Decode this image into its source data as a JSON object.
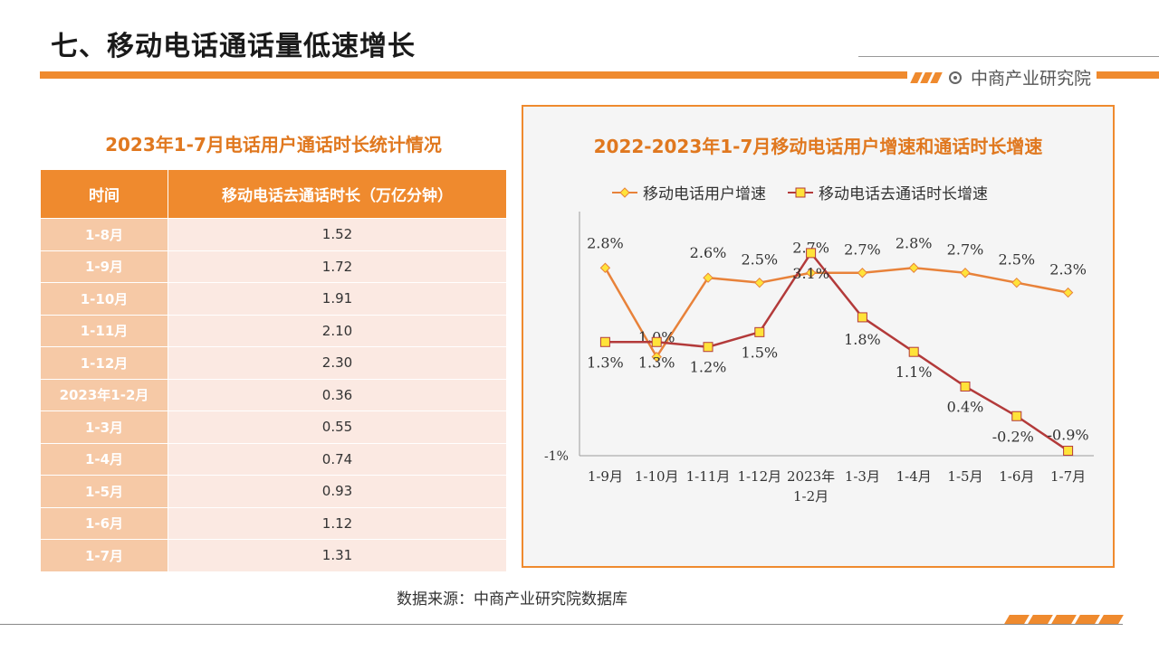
{
  "page": {
    "title": "七、移动电话通话量低速增长",
    "brand": "中商产业研究院",
    "source": "数据来源：中商产业研究院数据库"
  },
  "table": {
    "title": "2023年1-7月电话用户通话时长统计情况",
    "headers": [
      "时间",
      "移动电话去通话时长（万亿分钟）"
    ],
    "rows": [
      [
        "1-8月",
        "1.52"
      ],
      [
        "1-9月",
        "1.72"
      ],
      [
        "1-10月",
        "1.91"
      ],
      [
        "1-11月",
        "2.10"
      ],
      [
        "1-12月",
        "2.30"
      ],
      [
        "2023年1-2月",
        "0.36"
      ],
      [
        "1-3月",
        "0.55"
      ],
      [
        "1-4月",
        "0.74"
      ],
      [
        "1-5月",
        "0.93"
      ],
      [
        "1-6月",
        "1.12"
      ],
      [
        "1-7月",
        "1.31"
      ]
    ]
  },
  "chart_data": {
    "type": "line",
    "title": "2022-2023年1-7月移动电话用户增速和通话时长增速",
    "categories": [
      "1-9月",
      "1-10月",
      "1-11月",
      "1-12月",
      "2023年1-2月",
      "1-3月",
      "1-4月",
      "1-5月",
      "1-6月",
      "1-7月"
    ],
    "series": [
      {
        "name": "移动电话用户增速",
        "values": [
          2.8,
          1.0,
          2.6,
          2.5,
          2.7,
          2.7,
          2.8,
          2.7,
          2.5,
          2.3
        ],
        "labels": [
          "2.8%",
          "1.0%",
          "2.6%",
          "2.5%",
          "2.7%",
          "2.7%",
          "2.8%",
          "2.7%",
          "2.5%",
          "2.3%"
        ],
        "color": "#e8823a",
        "marker": "diamond"
      },
      {
        "name": "移动电话去通话时长增速",
        "values": [
          1.3,
          1.3,
          1.2,
          1.5,
          3.1,
          1.8,
          1.1,
          0.4,
          -0.2,
          -0.9
        ],
        "labels": [
          "1.3%",
          "1.3%",
          "1.2%",
          "1.5%",
          "3.1%",
          "1.8%",
          "1.1%",
          "0.4%",
          "-0.2%",
          "-0.9%"
        ],
        "color": "#b33a3a",
        "marker": "square"
      }
    ],
    "y_tick_label": "-1%",
    "ylim": [
      -1,
      3.5
    ],
    "legend_position": "top",
    "grid": false
  }
}
